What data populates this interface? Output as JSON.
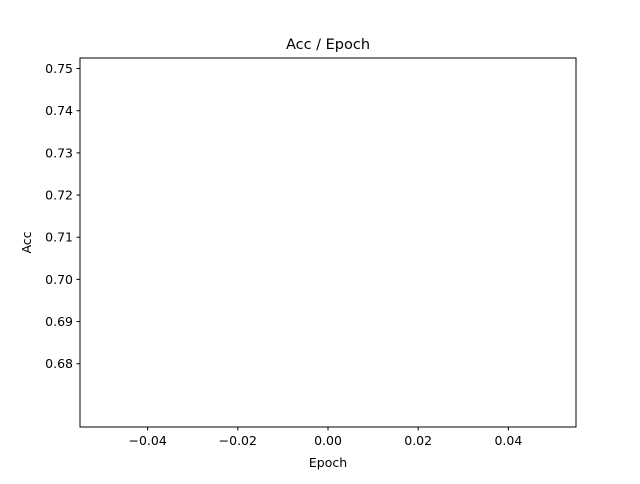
{
  "chart_data": {
    "type": "line",
    "title": "Acc / Epoch",
    "xlabel": "Epoch",
    "ylabel": "Acc",
    "xlim": [
      -0.055,
      0.055
    ],
    "ylim": [
      0.665,
      0.7525
    ],
    "x_ticks": [
      -0.04,
      -0.02,
      0.0,
      0.02,
      0.04
    ],
    "x_tick_labels": [
      "−0.04",
      "−0.02",
      "0.00",
      "0.02",
      "0.04"
    ],
    "y_ticks": [
      0.68,
      0.69,
      0.7,
      0.71,
      0.72,
      0.73,
      0.74,
      0.75
    ],
    "y_tick_labels": [
      "0.68",
      "0.69",
      "0.70",
      "0.71",
      "0.72",
      "0.73",
      "0.74",
      "0.75"
    ],
    "series": [
      {
        "x": [],
        "y": []
      }
    ],
    "grid": false,
    "legend": false
  }
}
